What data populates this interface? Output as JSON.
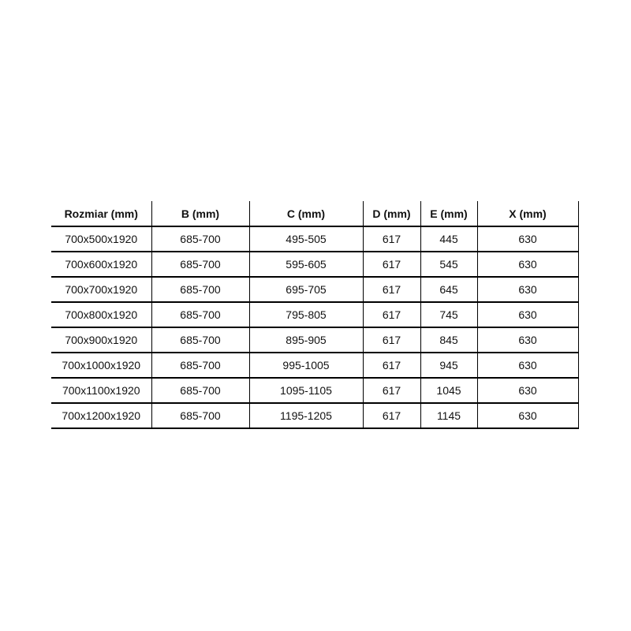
{
  "colors": {
    "background": "#ffffff",
    "border": "#000000",
    "text": "#111111"
  },
  "table": {
    "headers": [
      "Rozmiar (mm)",
      "B (mm)",
      "C (mm)",
      "D (mm)",
      "E (mm)",
      "X (mm)"
    ],
    "rows": [
      [
        "700x500x1920",
        "685-700",
        "495-505",
        "617",
        "445",
        "630"
      ],
      [
        "700x600x1920",
        "685-700",
        "595-605",
        "617",
        "545",
        "630"
      ],
      [
        "700x700x1920",
        "685-700",
        "695-705",
        "617",
        "645",
        "630"
      ],
      [
        "700x800x1920",
        "685-700",
        "795-805",
        "617",
        "745",
        "630"
      ],
      [
        "700x900x1920",
        "685-700",
        "895-905",
        "617",
        "845",
        "630"
      ],
      [
        "700x1000x1920",
        "685-700",
        "995-1005",
        "617",
        "945",
        "630"
      ],
      [
        "700x1100x1920",
        "685-700",
        "1095-1105",
        "617",
        "1045",
        "630"
      ],
      [
        "700x1200x1920",
        "685-700",
        "1195-1205",
        "617",
        "1145",
        "630"
      ]
    ]
  }
}
